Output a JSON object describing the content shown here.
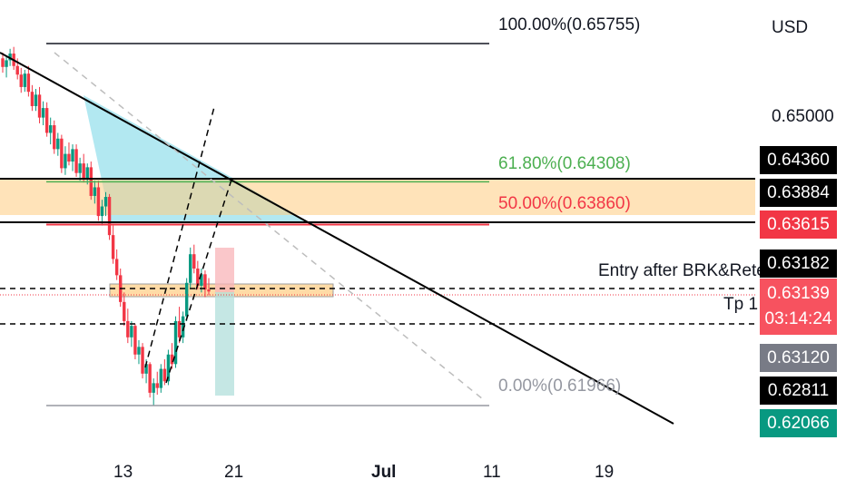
{
  "chart_data": {
    "type": "candlestick",
    "currency_label": "USD",
    "y_tick_labels": [
      "0.65000"
    ],
    "x_tick_labels": [
      "13",
      "21",
      "Jul",
      "11",
      "19"
    ],
    "fib_levels": [
      {
        "label": "100.00%(0.65755)",
        "price": 0.65755,
        "color": "#131722"
      },
      {
        "label": "61.80%(0.64308)",
        "price": 0.64308,
        "color": "#4caf50"
      },
      {
        "label": "50.00%(0.63860)",
        "price": 0.6386,
        "color": "#f23645"
      },
      {
        "label": "0.00%(0.61966)",
        "price": 0.61966,
        "color": "#9598a1"
      }
    ],
    "price_tags": [
      {
        "value": "0.64360",
        "color": "#000000"
      },
      {
        "value": "0.63884",
        "color": "#000000"
      },
      {
        "value": "0.63615",
        "color": "#f23645"
      },
      {
        "value": "0.63182",
        "color": "#000000"
      },
      {
        "value": "0.63139",
        "countdown": "03:14:24",
        "color": "#f7525f"
      },
      {
        "value": "0.63120",
        "color": "#787b86"
      },
      {
        "value": "0.62811",
        "color": "#000000"
      },
      {
        "value": "0.62066",
        "color": "#089981"
      }
    ],
    "annotations": [
      "Entry after BRK&Retest",
      "Tp 1"
    ],
    "candles": [
      [
        0.656,
        0.6566,
        0.6545,
        0.6551
      ],
      [
        0.6551,
        0.6563,
        0.654,
        0.6558
      ],
      [
        0.6558,
        0.657,
        0.6552,
        0.6565
      ],
      [
        0.6565,
        0.6572,
        0.6548,
        0.6552
      ],
      [
        0.6552,
        0.656,
        0.6538,
        0.6543
      ],
      [
        0.6543,
        0.655,
        0.6524,
        0.653
      ],
      [
        0.653,
        0.6548,
        0.6525,
        0.6544
      ],
      [
        0.6544,
        0.6552,
        0.652,
        0.6525
      ],
      [
        0.6525,
        0.6532,
        0.6505,
        0.651
      ],
      [
        0.651,
        0.6528,
        0.6505,
        0.6522
      ],
      [
        0.6522,
        0.653,
        0.6492,
        0.6498
      ],
      [
        0.6498,
        0.6515,
        0.649,
        0.6508
      ],
      [
        0.6508,
        0.6514,
        0.6478,
        0.6482
      ],
      [
        0.6482,
        0.6498,
        0.647,
        0.649
      ],
      [
        0.649,
        0.6495,
        0.646,
        0.6465
      ],
      [
        0.6465,
        0.6482,
        0.6458,
        0.6476
      ],
      [
        0.6476,
        0.648,
        0.644,
        0.6445
      ],
      [
        0.6445,
        0.6468,
        0.6438,
        0.646
      ],
      [
        0.646,
        0.6472,
        0.6448,
        0.6452
      ],
      [
        0.6452,
        0.647,
        0.6442,
        0.6465
      ],
      [
        0.6465,
        0.647,
        0.6436,
        0.644
      ],
      [
        0.644,
        0.6456,
        0.6432,
        0.645
      ],
      [
        0.645,
        0.646,
        0.643,
        0.6434
      ],
      [
        0.6434,
        0.645,
        0.6428,
        0.6446
      ],
      [
        0.6446,
        0.6452,
        0.6412,
        0.6416
      ],
      [
        0.6416,
        0.6432,
        0.6408,
        0.6425
      ],
      [
        0.6425,
        0.6432,
        0.639,
        0.6395
      ],
      [
        0.6395,
        0.6412,
        0.6385,
        0.6405
      ],
      [
        0.6405,
        0.642,
        0.6395,
        0.6415
      ],
      [
        0.6415,
        0.6418,
        0.637,
        0.6375
      ],
      [
        0.6375,
        0.6385,
        0.6345,
        0.635
      ],
      [
        0.635,
        0.636,
        0.6328,
        0.6333
      ],
      [
        0.6333,
        0.634,
        0.63,
        0.6305
      ],
      [
        0.6305,
        0.6315,
        0.628,
        0.6285
      ],
      [
        0.6285,
        0.6298,
        0.6262,
        0.6268
      ],
      [
        0.6268,
        0.6285,
        0.6258,
        0.628
      ],
      [
        0.628,
        0.6282,
        0.6245,
        0.625
      ],
      [
        0.625,
        0.6265,
        0.624,
        0.6258
      ],
      [
        0.6258,
        0.6262,
        0.6225,
        0.623
      ],
      [
        0.623,
        0.6245,
        0.622,
        0.624
      ],
      [
        0.624,
        0.6242,
        0.6205,
        0.621
      ],
      [
        0.621,
        0.6225,
        0.6197,
        0.622
      ],
      [
        0.622,
        0.6232,
        0.6208,
        0.6215
      ],
      [
        0.6215,
        0.624,
        0.621,
        0.6235
      ],
      [
        0.6235,
        0.6245,
        0.6218,
        0.6222
      ],
      [
        0.6222,
        0.6255,
        0.6218,
        0.625
      ],
      [
        0.625,
        0.6262,
        0.6235,
        0.624
      ],
      [
        0.624,
        0.629,
        0.6236,
        0.6285
      ],
      [
        0.6285,
        0.63,
        0.6262,
        0.6268
      ],
      [
        0.6268,
        0.6295,
        0.6262,
        0.629
      ],
      [
        0.629,
        0.633,
        0.6285,
        0.6325
      ],
      [
        0.6325,
        0.6362,
        0.632,
        0.6355
      ],
      [
        0.6355,
        0.6365,
        0.6335,
        0.634
      ],
      [
        0.634,
        0.6348,
        0.6318,
        0.6322
      ],
      [
        0.6322,
        0.634,
        0.6315,
        0.6334
      ],
      [
        0.6334,
        0.6338,
        0.631,
        0.6318
      ],
      [
        0.6318,
        0.633,
        0.6312,
        0.6316
      ]
    ]
  }
}
